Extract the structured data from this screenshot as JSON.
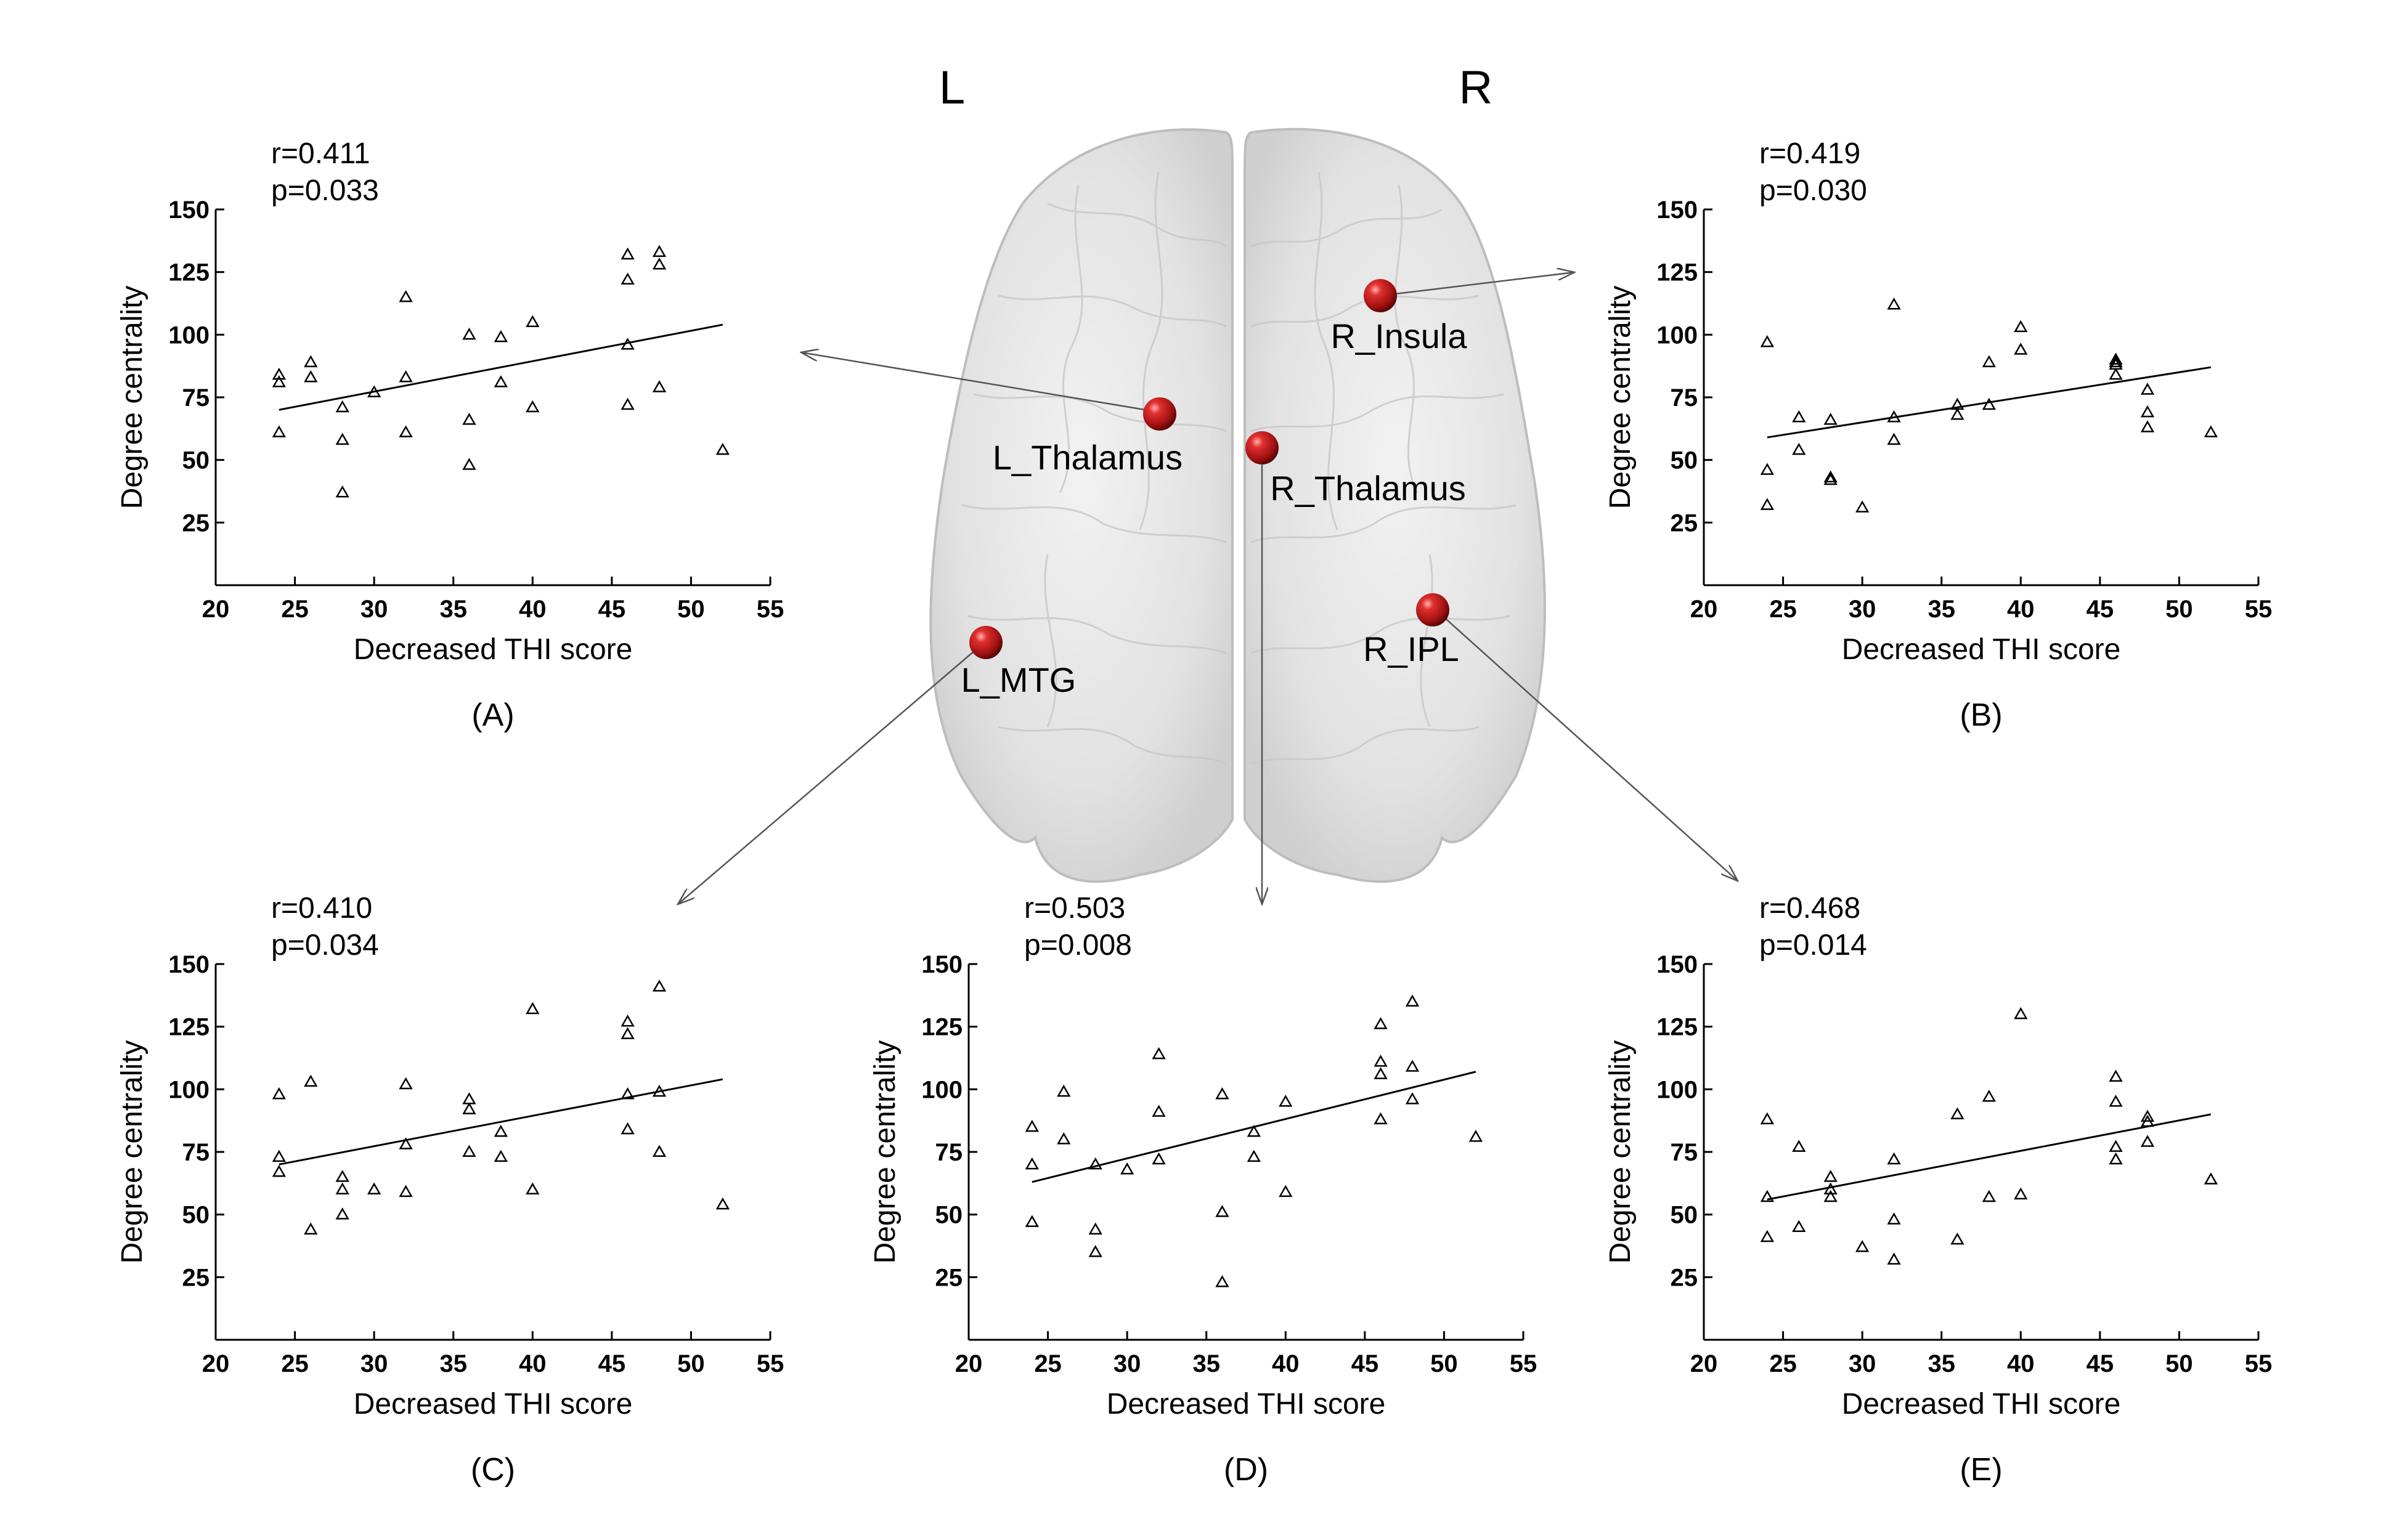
{
  "hemisphere_labels": {
    "left": "L",
    "right": "R"
  },
  "regions": [
    {
      "id": "L_Thalamus",
      "label": "L_Thalamus",
      "panel": "A"
    },
    {
      "id": "R_Insula",
      "label": "R_Insula",
      "panel": "B"
    },
    {
      "id": "L_MTG",
      "label": "L_MTG",
      "panel": "C"
    },
    {
      "id": "R_Thalamus",
      "label": "R_Thalamus",
      "panel": "D"
    },
    {
      "id": "R_IPL",
      "label": "R_IPL",
      "panel": "E"
    }
  ],
  "colors": {
    "sphere": "#c41a1a",
    "axis": "#000000",
    "brain": "#d9d9d9",
    "connector": "#555555"
  },
  "chart_data": [
    {
      "type": "scatter",
      "panel": "A",
      "caption": "(A)",
      "region": "L_Thalamus",
      "stats": {
        "r": "r=0.411",
        "p": "p=0.033"
      },
      "xlabel": "Decreased THI score",
      "ylabel": "Degree centrality",
      "xlim": [
        20,
        55
      ],
      "ylim": [
        0,
        150
      ],
      "xticks": [
        "20",
        "25",
        "30",
        "35",
        "40",
        "45",
        "50",
        "55"
      ],
      "yticks": [
        "25",
        "50",
        "75",
        "100",
        "125",
        "150"
      ],
      "marker": "triangle-open",
      "fit": {
        "x": [
          24,
          52
        ],
        "y": [
          70,
          104
        ]
      },
      "x": [
        24,
        24,
        24,
        26,
        26,
        28,
        28,
        28,
        30,
        32,
        32,
        32,
        36,
        36,
        36,
        38,
        38,
        40,
        40,
        46,
        46,
        46,
        46,
        48,
        48,
        48,
        52
      ],
      "y": [
        84,
        81,
        61,
        89,
        83,
        71,
        58,
        37,
        77,
        115,
        83,
        61,
        100,
        66,
        48,
        99,
        81,
        105,
        71,
        132,
        122,
        96,
        72,
        133,
        128,
        79,
        54
      ]
    },
    {
      "type": "scatter",
      "panel": "B",
      "caption": "(B)",
      "region": "R_Insula",
      "stats": {
        "r": "r=0.419",
        "p": "p=0.030"
      },
      "xlabel": "Decreased THI score",
      "ylabel": "Degree centrality",
      "xlim": [
        20,
        55
      ],
      "ylim": [
        0,
        150
      ],
      "xticks": [
        "20",
        "25",
        "30",
        "35",
        "40",
        "45",
        "50",
        "55"
      ],
      "yticks": [
        "25",
        "50",
        "75",
        "100",
        "125",
        "150"
      ],
      "marker": "triangle-open",
      "fit": {
        "x": [
          24,
          52
        ],
        "y": [
          59,
          87
        ]
      },
      "x": [
        24,
        24,
        24,
        26,
        26,
        28,
        28,
        28,
        30,
        32,
        32,
        32,
        36,
        36,
        38,
        38,
        40,
        40,
        46,
        46,
        46,
        46,
        48,
        48,
        48,
        52
      ],
      "y": [
        97,
        46,
        32,
        67,
        54,
        66,
        43,
        42,
        31,
        112,
        67,
        58,
        72,
        68,
        89,
        72,
        103,
        94,
        90,
        89,
        88,
        84,
        78,
        69,
        63,
        61
      ]
    },
    {
      "type": "scatter",
      "panel": "C",
      "caption": "(C)",
      "region": "L_MTG",
      "stats": {
        "r": "r=0.410",
        "p": "p=0.034"
      },
      "xlabel": "Decreased THI score",
      "ylabel": "Degree centrality",
      "xlim": [
        20,
        55
      ],
      "ylim": [
        0,
        150
      ],
      "xticks": [
        "20",
        "25",
        "30",
        "35",
        "40",
        "45",
        "50",
        "55"
      ],
      "yticks": [
        "25",
        "50",
        "75",
        "100",
        "125",
        "150"
      ],
      "marker": "triangle-open",
      "fit": {
        "x": [
          24,
          52
        ],
        "y": [
          70,
          104
        ]
      },
      "x": [
        24,
        24,
        24,
        26,
        26,
        28,
        28,
        28,
        30,
        32,
        32,
        32,
        36,
        36,
        36,
        38,
        38,
        40,
        40,
        46,
        46,
        46,
        46,
        48,
        48,
        48,
        52
      ],
      "y": [
        98,
        73,
        67,
        103,
        44,
        65,
        60,
        50,
        60,
        102,
        78,
        59,
        96,
        92,
        75,
        83,
        73,
        132,
        60,
        127,
        122,
        98,
        84,
        141,
        99,
        75,
        54
      ]
    },
    {
      "type": "scatter",
      "panel": "D",
      "caption": "(D)",
      "region": "R_Thalamus",
      "stats": {
        "r": "r=0.503",
        "p": "p=0.008"
      },
      "xlabel": "Decreased THI score",
      "ylabel": "Degree centrality",
      "xlim": [
        20,
        55
      ],
      "ylim": [
        0,
        150
      ],
      "xticks": [
        "20",
        "25",
        "30",
        "35",
        "40",
        "45",
        "50",
        "55"
      ],
      "yticks": [
        "25",
        "50",
        "75",
        "100",
        "125",
        "150"
      ],
      "marker": "triangle-open",
      "fit": {
        "x": [
          24,
          52
        ],
        "y": [
          63,
          107
        ]
      },
      "x": [
        24,
        24,
        24,
        26,
        26,
        28,
        28,
        28,
        30,
        32,
        32,
        32,
        36,
        36,
        36,
        38,
        38,
        40,
        40,
        46,
        46,
        46,
        46,
        48,
        48,
        48,
        52
      ],
      "y": [
        85,
        70,
        47,
        99,
        80,
        70,
        44,
        35,
        68,
        114,
        91,
        72,
        98,
        51,
        23,
        83,
        73,
        95,
        59,
        126,
        111,
        106,
        88,
        135,
        109,
        96,
        81
      ]
    },
    {
      "type": "scatter",
      "panel": "E",
      "caption": "(E)",
      "region": "R_IPL",
      "stats": {
        "r": "r=0.468",
        "p": "p=0.014"
      },
      "xlabel": "Decreased THI score",
      "ylabel": "Degree centrality",
      "xlim": [
        20,
        55
      ],
      "ylim": [
        0,
        150
      ],
      "xticks": [
        "20",
        "25",
        "30",
        "35",
        "40",
        "45",
        "50",
        "55"
      ],
      "yticks": [
        "25",
        "50",
        "75",
        "100",
        "125",
        "150"
      ],
      "marker": "triangle-open",
      "fit": {
        "x": [
          24,
          52
        ],
        "y": [
          56,
          90
        ]
      },
      "x": [
        24,
        24,
        24,
        26,
        26,
        28,
        28,
        28,
        30,
        32,
        32,
        32,
        36,
        36,
        38,
        38,
        40,
        40,
        46,
        46,
        46,
        46,
        48,
        48,
        48,
        52
      ],
      "y": [
        88,
        57,
        41,
        77,
        45,
        65,
        60,
        57,
        37,
        72,
        48,
        32,
        90,
        40,
        97,
        57,
        130,
        58,
        105,
        95,
        77,
        72,
        89,
        87,
        79,
        64
      ]
    }
  ]
}
